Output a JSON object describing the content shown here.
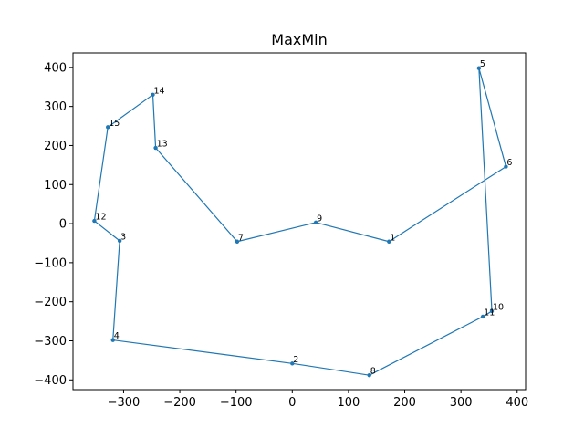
{
  "chart_data": {
    "type": "line",
    "title": "MaxMin",
    "xlabel": "",
    "ylabel": "",
    "xlim": [
      -390,
      415
    ],
    "ylim": [
      -425,
      437
    ],
    "xticks": [
      -300,
      -200,
      -100,
      0,
      100,
      200,
      300,
      400
    ],
    "yticks": [
      -400,
      -300,
      -200,
      -100,
      0,
      100,
      200,
      300,
      400
    ],
    "xtick_labels": [
      "−300",
      "−200",
      "−100",
      "0",
      "100",
      "200",
      "300",
      "400"
    ],
    "ytick_labels": [
      "−400",
      "−300",
      "−200",
      "−100",
      "0",
      "100",
      "200",
      "300",
      "400"
    ],
    "grid": false,
    "line_color": "#1f77b4",
    "points": [
      {
        "label": "1",
        "x": 172,
        "y": -46
      },
      {
        "label": "2",
        "x": 0,
        "y": -358
      },
      {
        "label": "3",
        "x": -307,
        "y": -44
      },
      {
        "label": "4",
        "x": -319,
        "y": -298
      },
      {
        "label": "5",
        "x": 332,
        "y": 398
      },
      {
        "label": "6",
        "x": 380,
        "y": 146
      },
      {
        "label": "7",
        "x": -98,
        "y": -46
      },
      {
        "label": "8",
        "x": 137,
        "y": -388
      },
      {
        "label": "9",
        "x": 42,
        "y": 3
      },
      {
        "label": "10",
        "x": 355,
        "y": -224
      },
      {
        "label": "11",
        "x": 339,
        "y": -238
      },
      {
        "label": "12",
        "x": -352,
        "y": 7
      },
      {
        "label": "13",
        "x": -243,
        "y": 194
      },
      {
        "label": "14",
        "x": -248,
        "y": 330
      },
      {
        "label": "15",
        "x": -328,
        "y": 247
      }
    ],
    "path_order": [
      "5",
      "6",
      "1",
      "9",
      "7",
      "13",
      "14",
      "15",
      "12",
      "3",
      "4",
      "2",
      "8",
      "11",
      "10",
      "5"
    ]
  }
}
